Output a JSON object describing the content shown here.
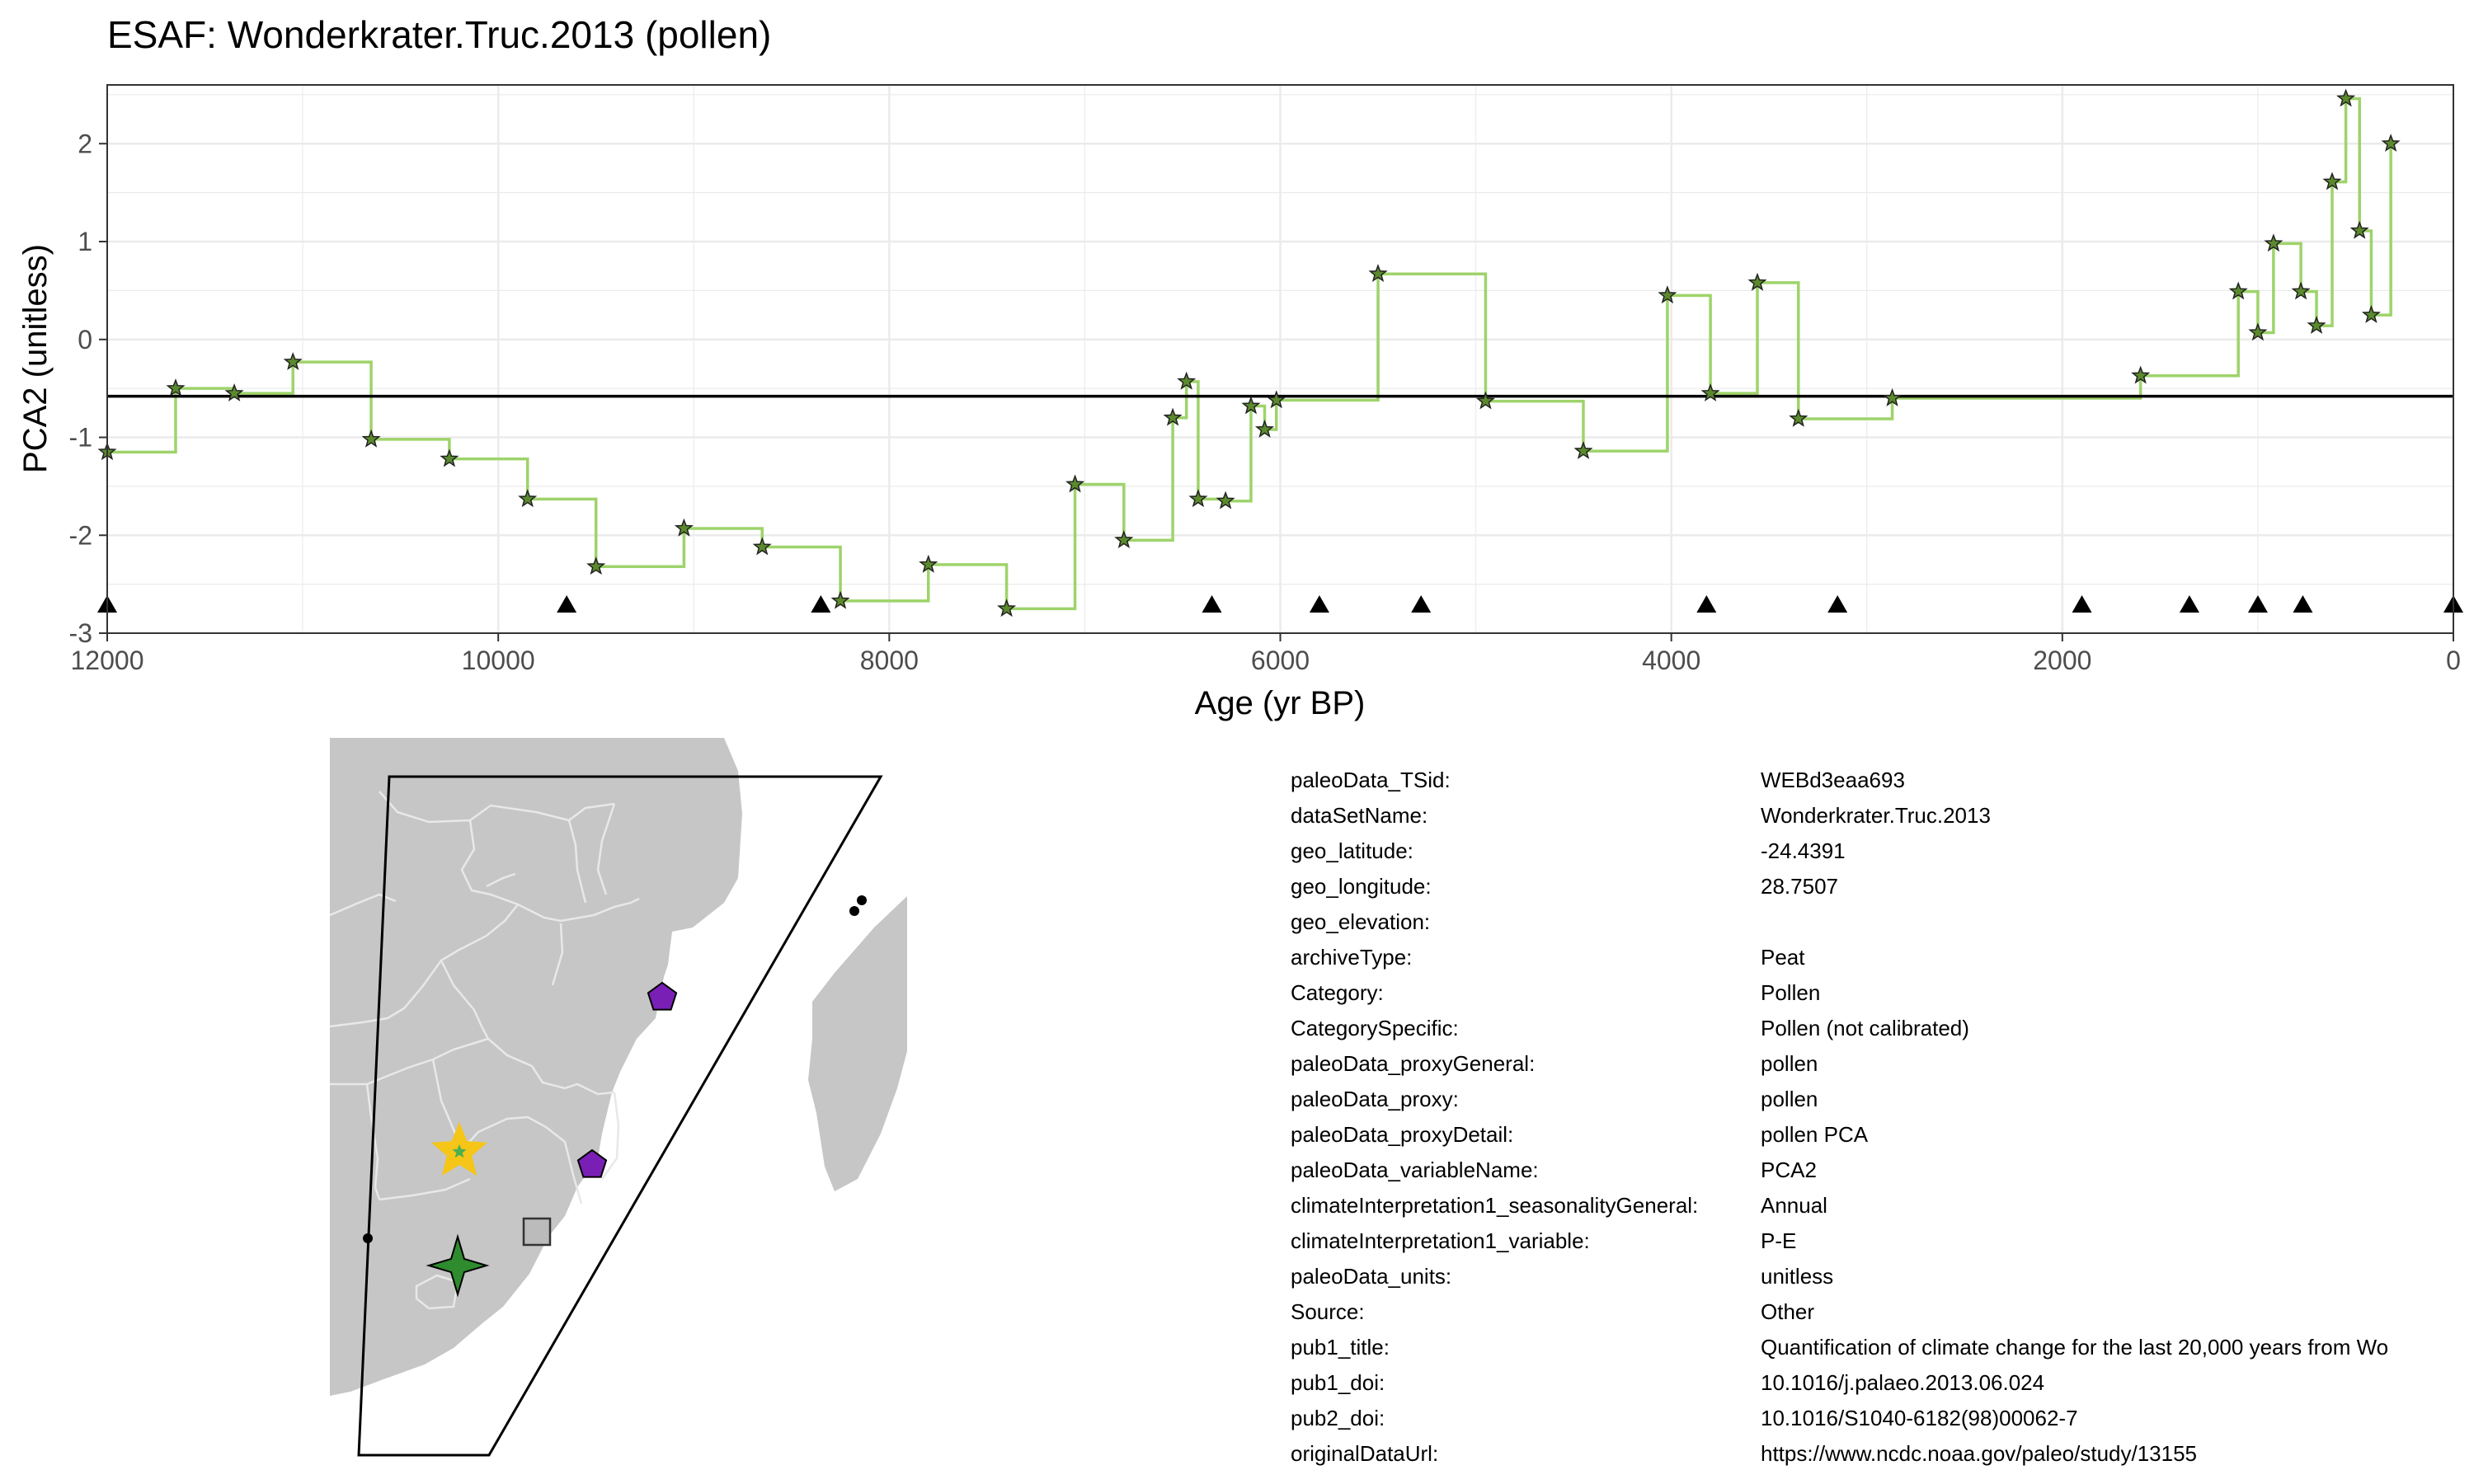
{
  "chart_data": {
    "type": "line",
    "title": "ESAF: Wonderkrater.Truc.2013 (pollen)",
    "xlabel": "Age (yr BP)",
    "ylabel": "PCA2 (unitless)",
    "xlim": [
      12000,
      0
    ],
    "ylim": [
      -3,
      2.6
    ],
    "x_reversed": true,
    "grid": true,
    "xticks": [
      12000,
      10000,
      8000,
      6000,
      4000,
      2000,
      0
    ],
    "yticks": [
      -3,
      -2,
      -1,
      0,
      1,
      2
    ],
    "mean_line": -0.58,
    "series": [
      {
        "style": "step",
        "color": "#9ed36a",
        "x": [
          12000,
          11650,
          11350,
          11050,
          10650,
          10250,
          9850,
          9500,
          9050,
          8650,
          8250,
          7800,
          7400,
          7050,
          6800,
          6550,
          6480,
          6420,
          6280,
          6150,
          6080,
          6020,
          5500,
          4950,
          4450,
          4020,
          3800,
          3560,
          3350,
          2870,
          1600,
          1100,
          1000,
          920,
          780,
          700,
          620,
          550,
          480,
          420,
          320
        ],
        "y": [
          -1.15,
          -0.5,
          -0.55,
          -0.23,
          -1.02,
          -1.22,
          -1.63,
          -2.32,
          -1.93,
          -2.12,
          -2.67,
          -2.3,
          -2.75,
          -1.48,
          -2.05,
          -0.8,
          -0.43,
          -1.63,
          -1.65,
          -0.68,
          -0.92,
          -0.62,
          0.67,
          -0.63,
          -1.14,
          0.45,
          -0.55,
          0.58,
          -0.81,
          -0.6,
          -0.37,
          0.49,
          0.07,
          0.98,
          0.49,
          0.14,
          1.61,
          2.46,
          1.11,
          0.25,
          2.0
        ]
      }
    ],
    "chron_ages": [
      12000,
      9650,
      8350,
      6350,
      5800,
      5280,
      3820,
      3150,
      1900,
      1350,
      1000,
      770,
      0
    ]
  },
  "map": {
    "land_color": "#c6c6c6",
    "border_color": "#e8e8e8",
    "site_star_color": "#f5c518",
    "pentagon_color": "#7a1fb5",
    "cross_star_color": "#2e8b2e",
    "square_color": "#bbbbbb"
  },
  "metadata": [
    {
      "key": "paleoData_TSid:",
      "value": "WEBd3eaa693"
    },
    {
      "key": "dataSetName:",
      "value": "Wonderkrater.Truc.2013"
    },
    {
      "key": "geo_latitude:",
      "value": "-24.4391"
    },
    {
      "key": "geo_longitude:",
      "value": "28.7507"
    },
    {
      "key": "geo_elevation:",
      "value": ""
    },
    {
      "key": "archiveType:",
      "value": "Peat"
    },
    {
      "key": "Category:",
      "value": "Pollen"
    },
    {
      "key": "CategorySpecific:",
      "value": "Pollen (not calibrated)"
    },
    {
      "key": "paleoData_proxyGeneral:",
      "value": "pollen"
    },
    {
      "key": "paleoData_proxy:",
      "value": "pollen"
    },
    {
      "key": "paleoData_proxyDetail:",
      "value": "pollen PCA"
    },
    {
      "key": "paleoData_variableName:",
      "value": "PCA2"
    },
    {
      "key": "climateInterpretation1_seasonalityGeneral:",
      "value": "Annual"
    },
    {
      "key": "climateInterpretation1_variable:",
      "value": "P-E"
    },
    {
      "key": "paleoData_units:",
      "value": "unitless"
    },
    {
      "key": "Source:",
      "value": "Other"
    },
    {
      "key": "pub1_title:",
      "value": "Quantification of climate change for the last 20,000 years from Wo"
    },
    {
      "key": "pub1_doi:",
      "value": "10.1016/j.palaeo.2013.06.024"
    },
    {
      "key": "pub2_doi:",
      "value": "10.1016/S1040-6182(98)00062-7"
    },
    {
      "key": "originalDataUrl:",
      "value": "https://www.ncdc.noaa.gov/paleo/study/13155"
    }
  ]
}
